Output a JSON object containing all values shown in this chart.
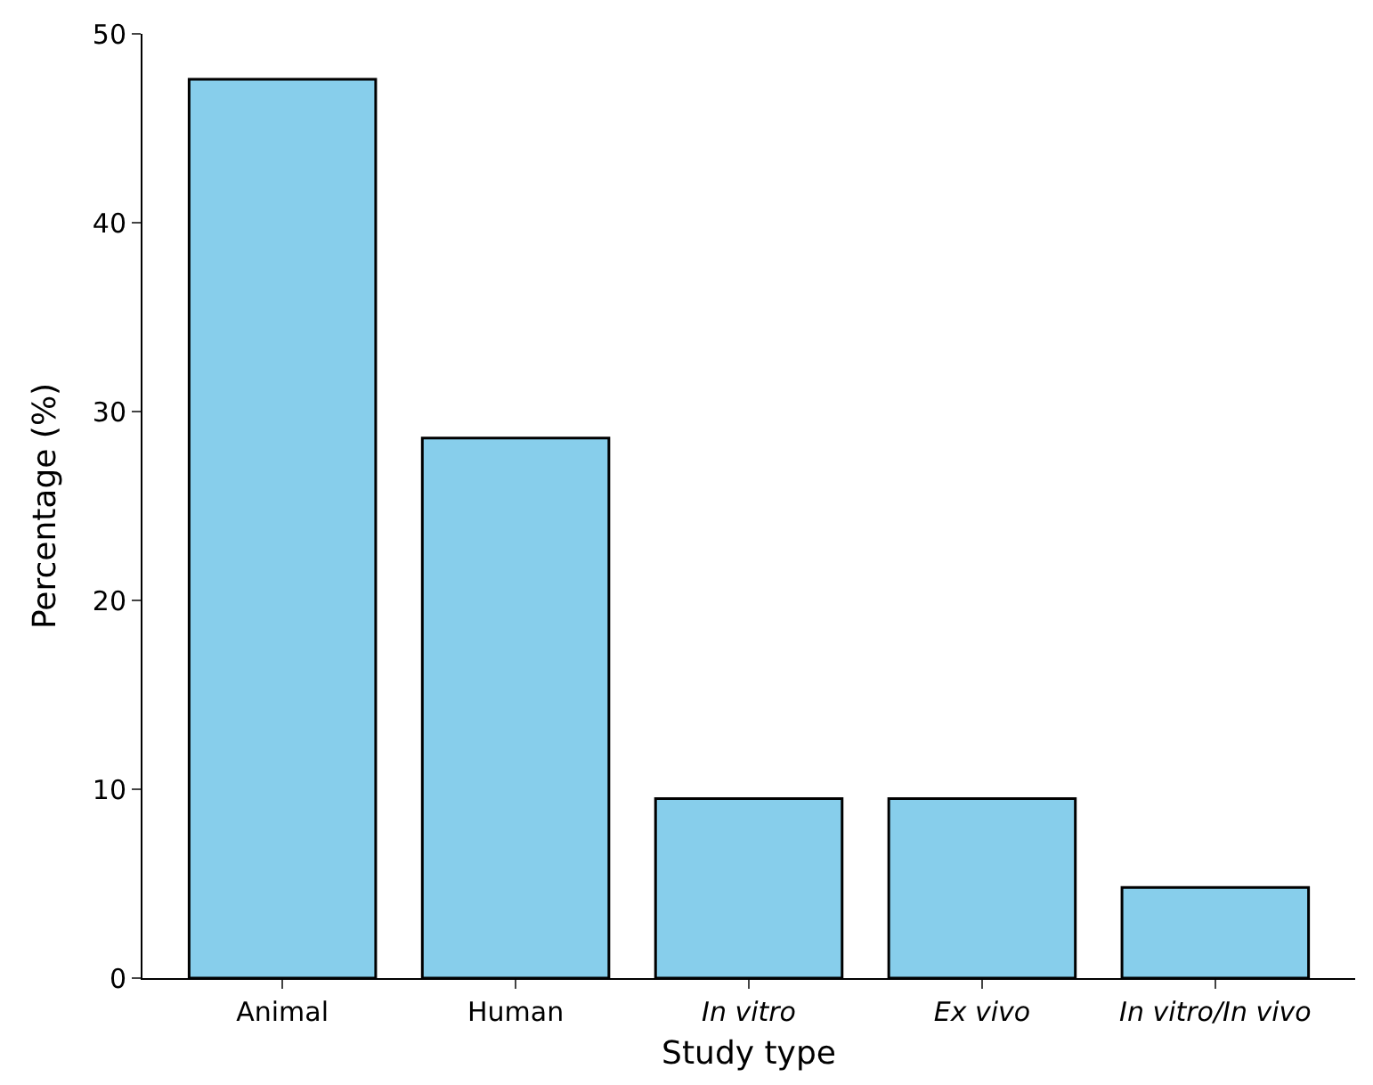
{
  "chart_data": {
    "type": "bar",
    "xlabel": "Study type",
    "ylabel": "Percentage (%)",
    "categories": [
      "Animal",
      "Human",
      "In vitro",
      "Ex vivo",
      "In vitro/In vivo"
    ],
    "values": [
      47.6,
      28.6,
      9.5,
      9.5,
      4.8
    ],
    "color": "#87ceeb",
    "ylim": [
      0,
      50
    ],
    "yticks": [
      0,
      10,
      20,
      30,
      40,
      50
    ]
  }
}
